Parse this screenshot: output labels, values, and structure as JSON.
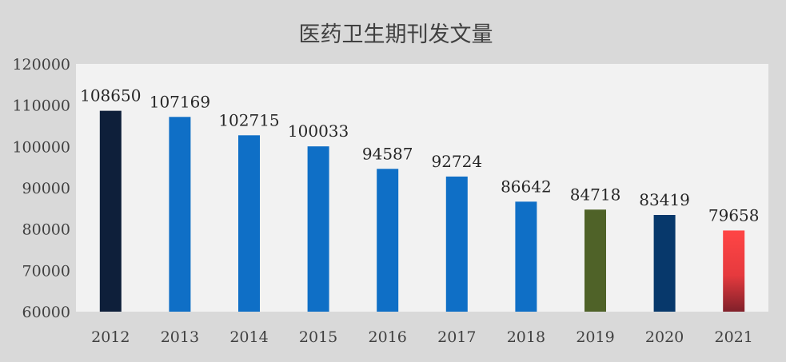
{
  "chart_data": {
    "type": "bar",
    "title": "医药卫生期刊发文量",
    "xlabel": "",
    "ylabel": "",
    "categories": [
      "2012",
      "2013",
      "2014",
      "2015",
      "2016",
      "2017",
      "2018",
      "2019",
      "2020",
      "2021"
    ],
    "values": [
      108650,
      107169,
      102715,
      100033,
      94587,
      92724,
      86642,
      84718,
      83419,
      79658
    ],
    "data_labels": [
      "108650",
      "107169",
      "102715",
      "100033",
      "94587",
      "92724",
      "86642",
      "84718",
      "83419",
      "79658"
    ],
    "ylim": [
      60000,
      120000
    ],
    "yticks": [
      60000,
      70000,
      80000,
      90000,
      100000,
      110000,
      120000
    ],
    "ytick_labels": [
      "60000",
      "70000",
      "80000",
      "90000",
      "100000",
      "110000",
      "120000"
    ],
    "grid": false,
    "legend": "none",
    "colors": {
      "background": "#d9d9d9",
      "plot_area": "#f2f2f2",
      "bars": [
        "#0e1f3a",
        "#0f6fc6",
        "#0f6fc6",
        "#0f6fc6",
        "#0f6fc6",
        "#0f6fc6",
        "#0f6fc6",
        "#4f6228",
        "#07386b",
        "gradient-red"
      ],
      "gradient_red_top": "#ff4545",
      "gradient_red_bottom": "#80202a"
    }
  }
}
